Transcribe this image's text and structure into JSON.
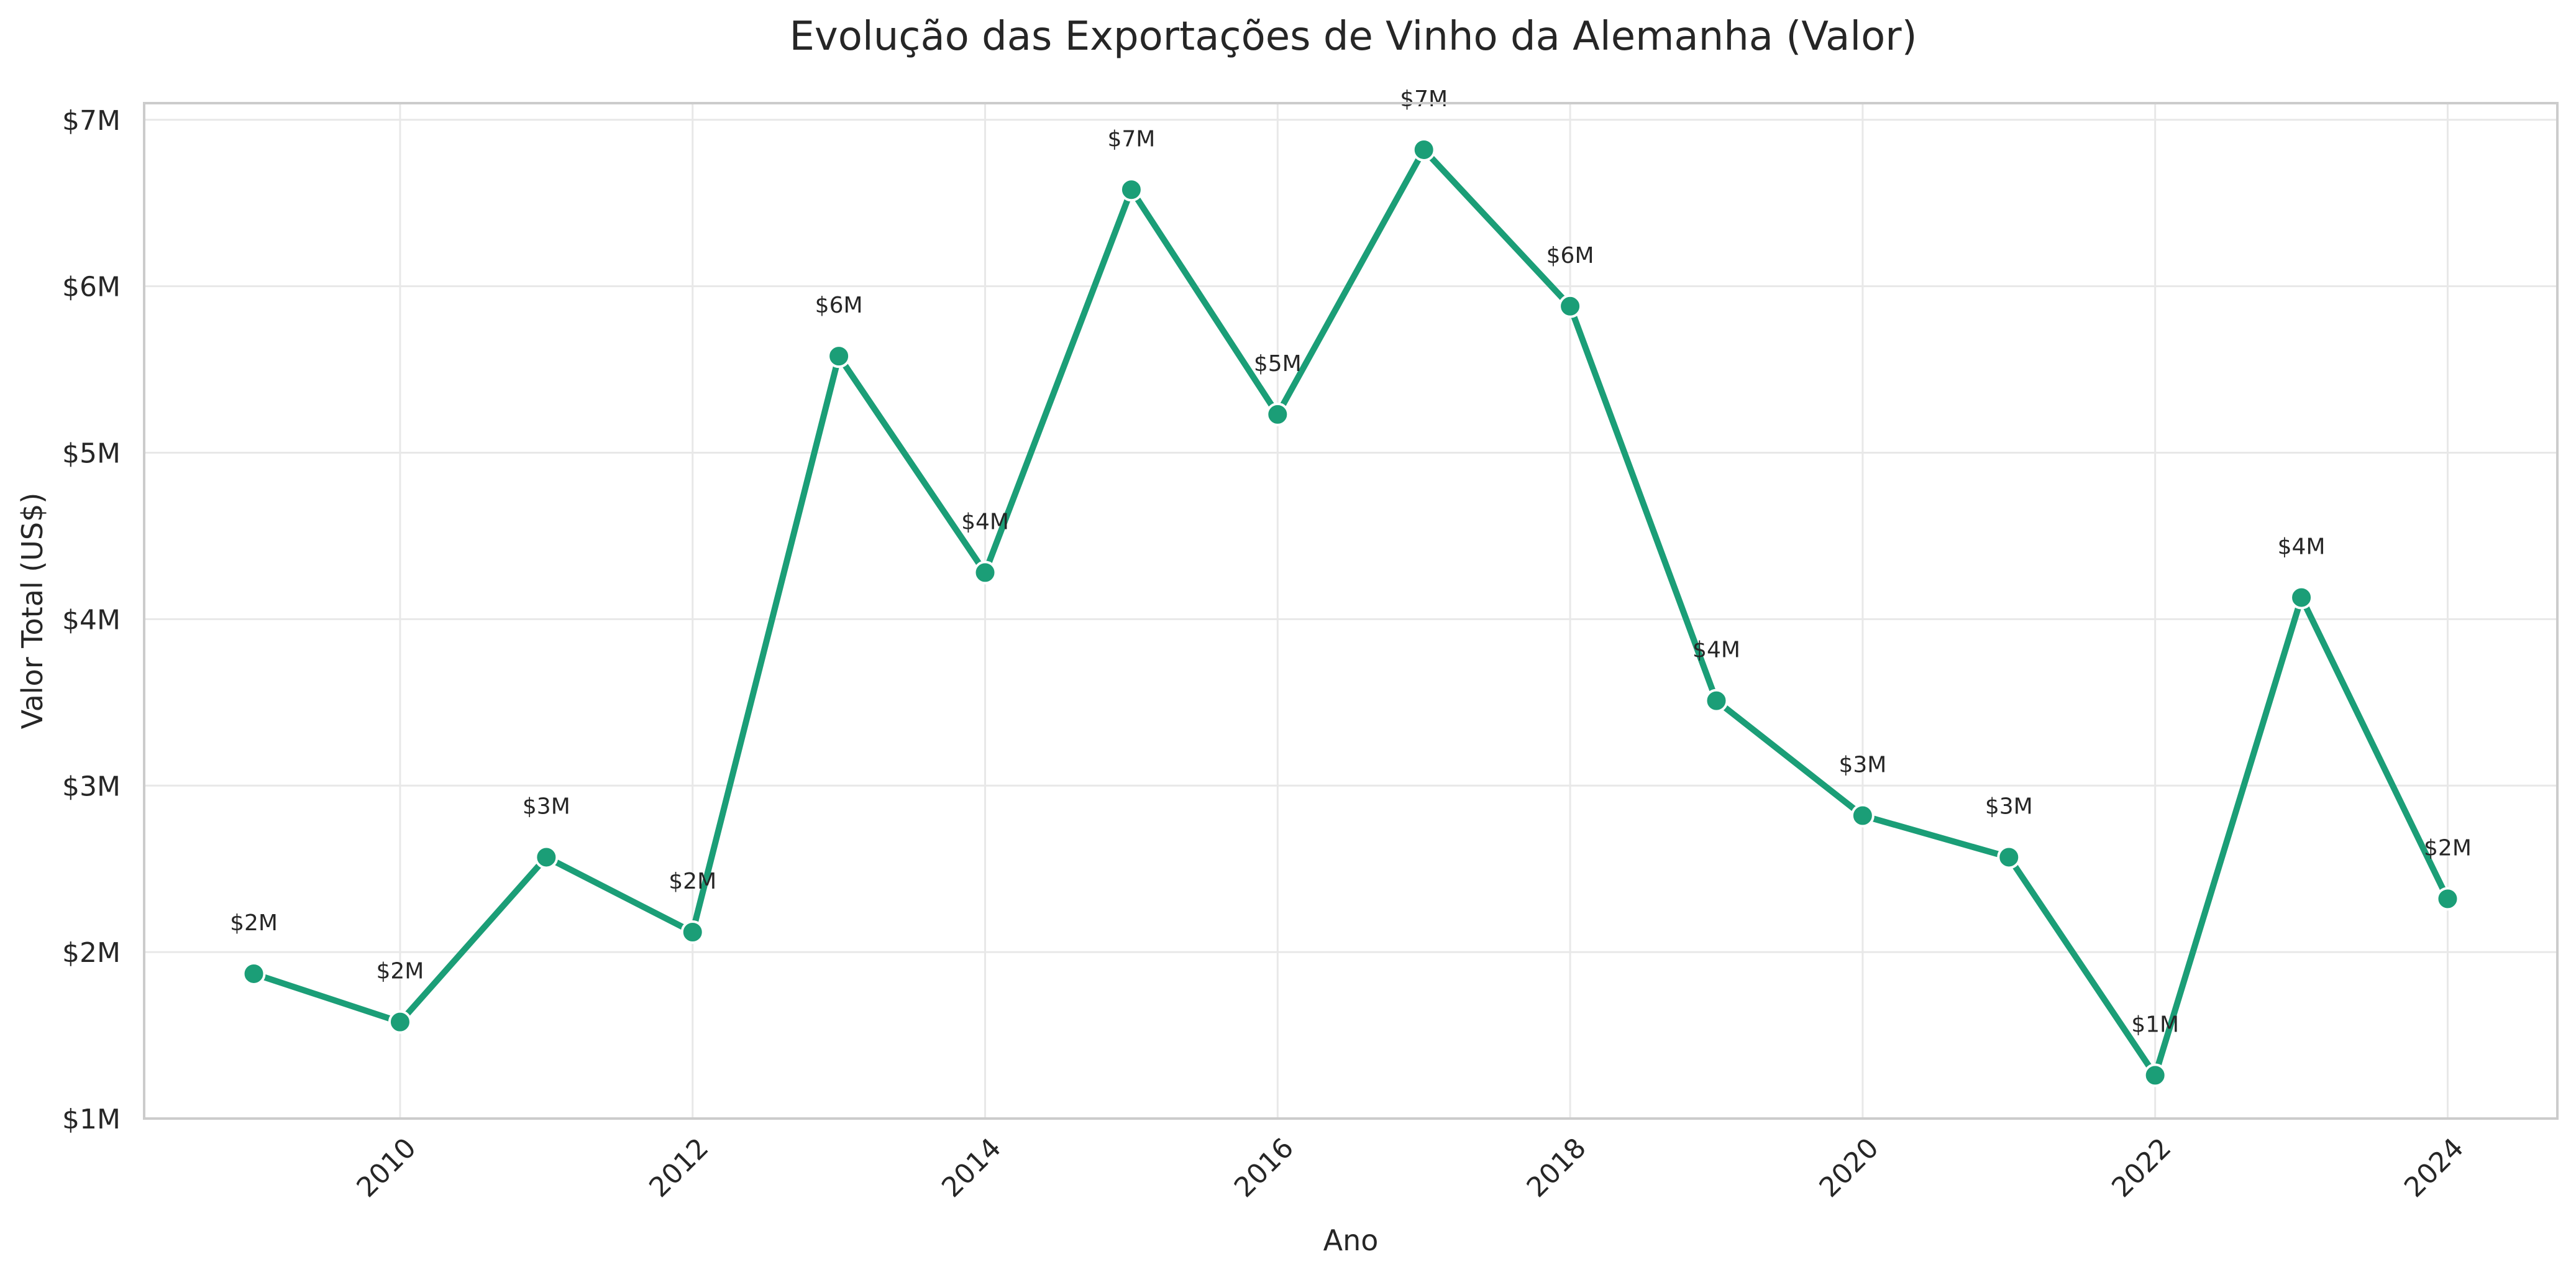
{
  "chart_data": {
    "type": "line",
    "title": "Evolução das Exportações de Vinho da Alemanha (Valor)",
    "xlabel": "Ano",
    "ylabel": "Valor Total (US$)",
    "x": [
      2009,
      2010,
      2011,
      2012,
      2013,
      2014,
      2015,
      2016,
      2017,
      2018,
      2019,
      2020,
      2021,
      2022,
      2023,
      2024
    ],
    "series": [
      {
        "values": [
          1.87,
          1.58,
          2.57,
          2.12,
          5.58,
          4.28,
          6.58,
          5.23,
          6.82,
          5.88,
          3.51,
          2.82,
          2.57,
          1.26,
          4.13,
          2.32
        ],
        "labels": [
          "$2M",
          "$2M",
          "$3M",
          "$2M",
          "$6M",
          "$4M",
          "$7M",
          "$5M",
          "$7M",
          "$6M",
          "$4M",
          "$3M",
          "$3M",
          "$1M",
          "$4M",
          "$2M"
        ],
        "color": "#1b9e77"
      }
    ],
    "xlim": [
      2008.25,
      2024.75
    ],
    "ylim": [
      1,
      7.1
    ],
    "xticks": [
      2010,
      2012,
      2014,
      2016,
      2018,
      2020,
      2022,
      2024
    ],
    "yticks": [
      1,
      2,
      3,
      4,
      5,
      6,
      7
    ],
    "ytick_labels": [
      "$1M",
      "$2M",
      "$3M",
      "$4M",
      "$5M",
      "$6M",
      "$7M"
    ],
    "grid": true,
    "colors": {
      "line": "#1b9e77",
      "marker_edge": "#ffffff",
      "grid": "#e8e8e8",
      "spine": "#cccccc",
      "text": "#262626"
    }
  }
}
